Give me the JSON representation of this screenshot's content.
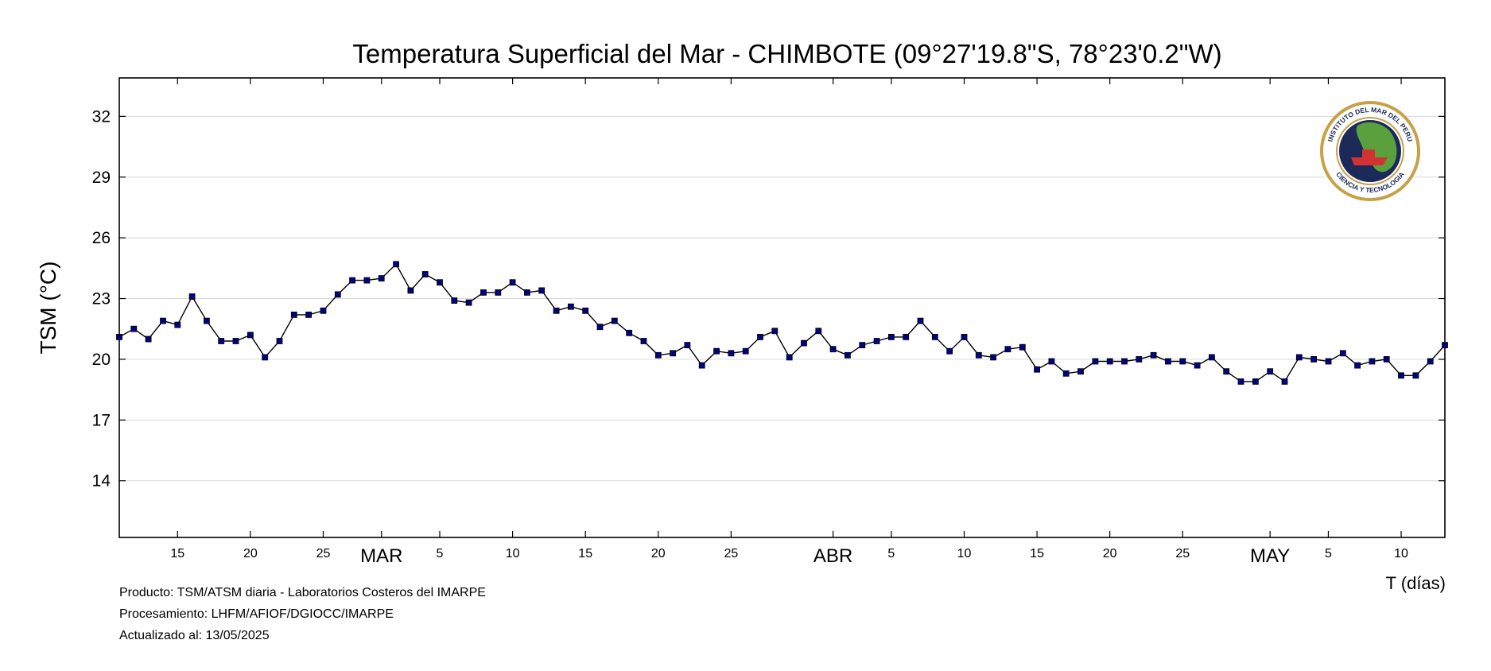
{
  "chart_data": {
    "type": "line",
    "title": "Temperatura Superficial del Mar - CHIMBOTE (09°27'19.8\"S, 78°23'0.2\"W)",
    "ylabel": "TSM (°C)",
    "xlabel": "T (días)",
    "ylim": [
      11.2,
      33.9
    ],
    "yticks": [
      14,
      17,
      20,
      23,
      26,
      29,
      32
    ],
    "x_start": "2025-02-11",
    "x_end": "2025-05-13",
    "x_ticks": [
      {
        "date": "2025-02-15",
        "label": "15"
      },
      {
        "date": "2025-02-20",
        "label": "20"
      },
      {
        "date": "2025-02-25",
        "label": "25"
      },
      {
        "date": "2025-03-01",
        "label": "MAR",
        "month": true
      },
      {
        "date": "2025-03-05",
        "label": "5"
      },
      {
        "date": "2025-03-10",
        "label": "10"
      },
      {
        "date": "2025-03-15",
        "label": "15"
      },
      {
        "date": "2025-03-20",
        "label": "20"
      },
      {
        "date": "2025-03-25",
        "label": "25"
      },
      {
        "date": "2025-04-01",
        "label": "ABR",
        "month": true
      },
      {
        "date": "2025-04-05",
        "label": "5"
      },
      {
        "date": "2025-04-10",
        "label": "10"
      },
      {
        "date": "2025-04-15",
        "label": "15"
      },
      {
        "date": "2025-04-20",
        "label": "20"
      },
      {
        "date": "2025-04-25",
        "label": "25"
      },
      {
        "date": "2025-05-01",
        "label": "MAY",
        "month": true
      },
      {
        "date": "2025-05-05",
        "label": "5"
      },
      {
        "date": "2025-05-10",
        "label": "10"
      }
    ],
    "grid": true,
    "series": [
      {
        "color": "#000080",
        "x": [
          "2025-02-11",
          "2025-02-12",
          "2025-02-13",
          "2025-02-14",
          "2025-02-15",
          "2025-02-16",
          "2025-02-17",
          "2025-02-18",
          "2025-02-19",
          "2025-02-20",
          "2025-02-21",
          "2025-02-22",
          "2025-02-23",
          "2025-02-24",
          "2025-02-25",
          "2025-02-26",
          "2025-02-27",
          "2025-02-28",
          "2025-03-01",
          "2025-03-02",
          "2025-03-03",
          "2025-03-04",
          "2025-03-05",
          "2025-03-06",
          "2025-03-07",
          "2025-03-08",
          "2025-03-09",
          "2025-03-10",
          "2025-03-11",
          "2025-03-12",
          "2025-03-13",
          "2025-03-14",
          "2025-03-15",
          "2025-03-16",
          "2025-03-17",
          "2025-03-18",
          "2025-03-19",
          "2025-03-20",
          "2025-03-21",
          "2025-03-22",
          "2025-03-23",
          "2025-03-24",
          "2025-03-25",
          "2025-03-26",
          "2025-03-27",
          "2025-03-28",
          "2025-03-29",
          "2025-03-30",
          "2025-03-31",
          "2025-04-01",
          "2025-04-02",
          "2025-04-03",
          "2025-04-04",
          "2025-04-05",
          "2025-04-06",
          "2025-04-07",
          "2025-04-08",
          "2025-04-09",
          "2025-04-10",
          "2025-04-11",
          "2025-04-12",
          "2025-04-13",
          "2025-04-14",
          "2025-04-15",
          "2025-04-16",
          "2025-04-17",
          "2025-04-18",
          "2025-04-19",
          "2025-04-20",
          "2025-04-21",
          "2025-04-22",
          "2025-04-23",
          "2025-04-24",
          "2025-04-25",
          "2025-04-26",
          "2025-04-27",
          "2025-04-28",
          "2025-04-29",
          "2025-04-30",
          "2025-05-01",
          "2025-05-02",
          "2025-05-03",
          "2025-05-04",
          "2025-05-05",
          "2025-05-06",
          "2025-05-07",
          "2025-05-08",
          "2025-05-09",
          "2025-05-10",
          "2025-05-11",
          "2025-05-12",
          "2025-05-13"
        ],
        "values": [
          21.1,
          21.5,
          21.0,
          21.9,
          21.7,
          23.1,
          21.9,
          20.9,
          20.9,
          21.2,
          20.1,
          20.9,
          22.2,
          22.2,
          22.4,
          23.2,
          23.9,
          23.9,
          24.0,
          24.7,
          23.4,
          24.2,
          23.8,
          22.9,
          22.8,
          23.3,
          23.3,
          23.8,
          23.3,
          23.4,
          22.4,
          22.6,
          22.4,
          21.6,
          21.9,
          21.3,
          20.9,
          20.2,
          20.3,
          20.7,
          19.7,
          20.4,
          20.3,
          20.4,
          21.1,
          21.4,
          20.1,
          20.8,
          21.4,
          20.5,
          20.2,
          20.7,
          20.9,
          21.1,
          21.1,
          21.9,
          21.1,
          20.4,
          21.1,
          20.2,
          20.1,
          20.5,
          20.6,
          19.5,
          19.9,
          19.3,
          19.4,
          19.9,
          19.9,
          19.9,
          20.0,
          20.2,
          19.9,
          19.9,
          19.7,
          20.1,
          19.4,
          18.9,
          18.9,
          19.4,
          18.9,
          20.1,
          20.0,
          19.9,
          20.3,
          19.7,
          19.9,
          20.0,
          19.2,
          19.2,
          19.9,
          20.7
        ]
      }
    ]
  },
  "footer": {
    "product": "Producto: TSM/ATSM diaria - Laboratorios Costeros del IMARPE",
    "processing": "Procesamiento: LHFM/AFIOF/DGIOCC/IMARPE",
    "updated": "Actualizado al: 13/05/2025"
  },
  "logo": {
    "text_top": "INSTITUTO DEL MAR DEL PERU",
    "text_bottom": "CIENCIA Y TECNOLOGIA",
    "ring_color": "#c8a046",
    "inner_color": "#1c2a5a",
    "land_color": "#5aa03c",
    "ship_color": "#d23232"
  }
}
